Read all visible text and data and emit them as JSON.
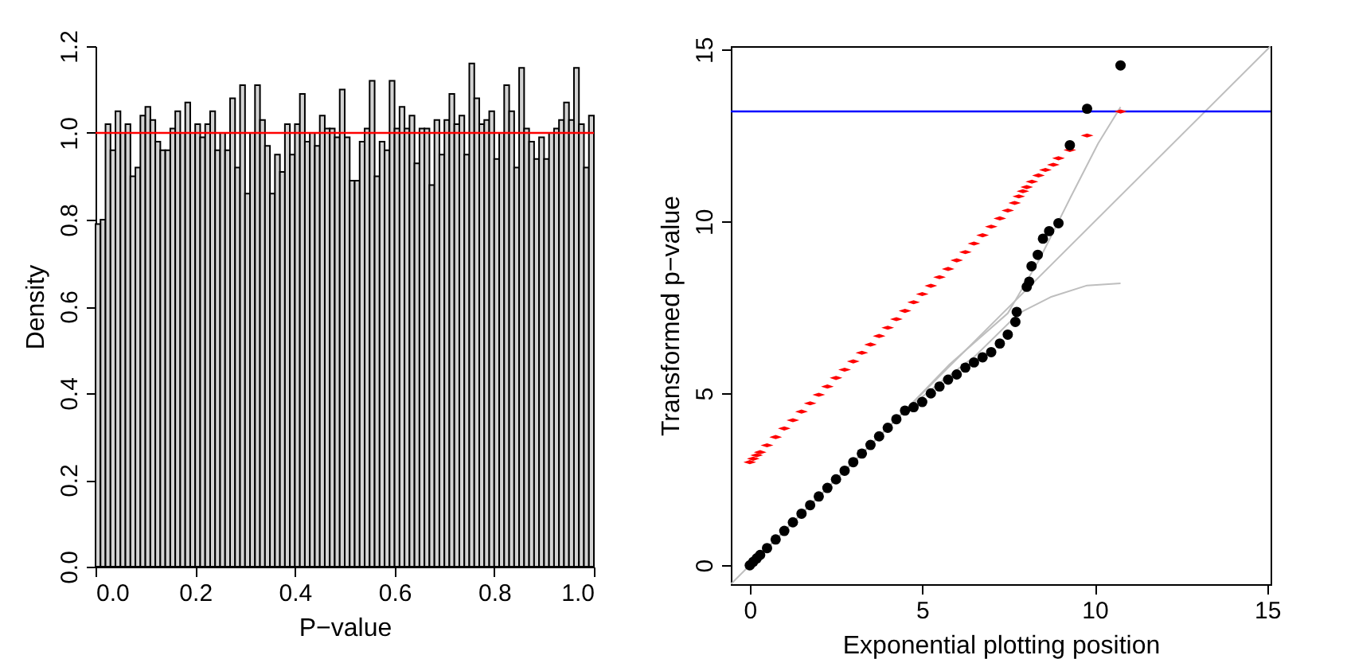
{
  "chart_data": [
    {
      "type": "histogram",
      "xlabel": "P−value",
      "ylabel": "Density",
      "color": "#d3d3d3",
      "bins": [
        0,
        0.01,
        0.02,
        0.03,
        0.04,
        0.05,
        0.06,
        0.07,
        0.08,
        0.09,
        0.1,
        0.11,
        0.12,
        0.13,
        0.14,
        0.15,
        0.16,
        0.17,
        0.18,
        0.19,
        0.2,
        0.21,
        0.22,
        0.23,
        0.24,
        0.25,
        0.26,
        0.27,
        0.28,
        0.29,
        0.3,
        0.31,
        0.32,
        0.33,
        0.34,
        0.35,
        0.36,
        0.37,
        0.38,
        0.39,
        0.4,
        0.41,
        0.42,
        0.43,
        0.44,
        0.45,
        0.46,
        0.47,
        0.48,
        0.49,
        0.5,
        0.51,
        0.52,
        0.53,
        0.54,
        0.55,
        0.56,
        0.57,
        0.58,
        0.59,
        0.6,
        0.61,
        0.62,
        0.63,
        0.64,
        0.65,
        0.66,
        0.67,
        0.68,
        0.69,
        0.7,
        0.71,
        0.72,
        0.73,
        0.74,
        0.75,
        0.76,
        0.77,
        0.78,
        0.79,
        0.8,
        0.81,
        0.82,
        0.83,
        0.84,
        0.85,
        0.86,
        0.87,
        0.88,
        0.89,
        0.9,
        0.91,
        0.92,
        0.93,
        0.94,
        0.95,
        0.96,
        0.97,
        0.98,
        0.99,
        1
      ],
      "values": [
        0.79,
        0.8,
        1.02,
        0.96,
        1.05,
        1.0,
        1.02,
        0.9,
        0.92,
        1.04,
        1.06,
        1.03,
        0.98,
        0.96,
        0.96,
        1.01,
        1.05,
        1.0,
        1.07,
        1.0,
        1.02,
        0.99,
        1.02,
        1.05,
        0.96,
        1.0,
        0.96,
        1.08,
        0.92,
        1.11,
        0.86,
        1.0,
        1.11,
        1.03,
        0.97,
        0.86,
        0.95,
        0.91,
        1.02,
        0.95,
        1.02,
        1.09,
        0.98,
        1.0,
        0.97,
        1.04,
        1.01,
        1.01,
        0.99,
        1.1,
        0.99,
        0.89,
        0.89,
        0.98,
        1.01,
        1.12,
        0.9,
        0.98,
        0.96,
        1.12,
        1.01,
        1.06,
        1.01,
        1.04,
        0.93,
        1.01,
        1.01,
        0.88,
        1.03,
        0.95,
        1.03,
        1.09,
        1.02,
        1.04,
        0.95,
        1.16,
        1.08,
        1.02,
        1.03,
        1.05,
        0.94,
        1.0,
        1.11,
        1.05,
        0.92,
        1.15,
        1.01,
        0.98,
        0.94,
        0.99,
        0.94,
        1.0,
        1.01,
        1.03,
        1.07,
        1.03,
        1.15,
        1.02,
        0.92,
        1.04
      ],
      "xlim": [
        0,
        1
      ],
      "ylim": [
        0,
        1.2
      ],
      "xticks": [
        {
          "value": 0,
          "label": "0.0"
        },
        0.2,
        0.4,
        0.6,
        0.8,
        {
          "value": 1,
          "label": "1.0"
        }
      ],
      "yticks": [
        {
          "value": 0,
          "label": "0.0"
        },
        0.2,
        0.4,
        0.6,
        0.8,
        {
          "value": 1,
          "label": "1.0"
        },
        1.2
      ],
      "ref_lines": [
        {
          "axis": "y",
          "value": 1,
          "color": "#ff0000"
        }
      ]
    },
    {
      "type": "scatter",
      "xlabel": "Exponential plotting position",
      "ylabel": "Transformed p−value",
      "xlim": [
        -0.55,
        15.1
      ],
      "ylim": [
        -0.55,
        15.1
      ],
      "xticks": [
        0,
        5,
        10,
        15
      ],
      "yticks": [
        0,
        5,
        10,
        15
      ],
      "series": [
        {
          "type": "line",
          "color": "#bebebe",
          "x": [
            -0.55,
            15.1
          ],
          "values": [
            -0.55,
            15.1
          ]
        },
        {
          "type": "line",
          "color": "#bebebe",
          "x": [
            0,
            4.5,
            5.8,
            7.48,
            8.4,
            9.3,
            10.1,
            10.75
          ],
          "values": [
            0,
            4.5,
            5.85,
            7.33,
            8.9,
            10.7,
            12.27,
            13.33
          ]
        },
        {
          "type": "line",
          "color": "#bebebe",
          "x": [
            0,
            4.5,
            5.5,
            6.55,
            7.8,
            8.72,
            9.78,
            10.75
          ],
          "values": [
            0,
            4.5,
            5.3,
            6.1,
            7.33,
            7.8,
            8.14,
            8.2
          ]
        },
        {
          "type": "scatter",
          "marker": "diamond",
          "color": "#ff0000",
          "x": [
            0,
            0.1,
            0.2,
            0.3,
            0.5,
            0.75,
            1,
            1.25,
            1.5,
            1.75,
            2,
            2.25,
            2.5,
            2.75,
            3,
            3.25,
            3.5,
            3.75,
            4,
            4.25,
            4.5,
            4.75,
            5,
            5.25,
            5.5,
            5.75,
            6,
            6.25,
            6.5,
            6.75,
            7,
            7.25,
            7.48,
            7.68,
            7.8,
            7.92,
            8.03,
            8.18,
            8.37,
            8.57,
            8.8,
            8.95,
            9.28,
            9.78,
            10.75
          ],
          "values": [
            3.0,
            3.1,
            3.2,
            3.29,
            3.49,
            3.73,
            3.98,
            4.22,
            4.47,
            4.71,
            4.96,
            5.2,
            5.45,
            5.69,
            5.93,
            6.18,
            6.42,
            6.67,
            6.91,
            7.16,
            7.4,
            7.65,
            7.89,
            8.13,
            8.38,
            8.62,
            8.87,
            9.11,
            9.36,
            9.6,
            9.85,
            10.09,
            10.32,
            10.54,
            10.73,
            10.88,
            11.0,
            11.16,
            11.34,
            11.5,
            11.65,
            11.84,
            12.08,
            12.5,
            13.2
          ]
        },
        {
          "type": "scatter",
          "marker": "circle",
          "color": "#000000",
          "x": [
            0,
            0.1,
            0.2,
            0.3,
            0.5,
            0.75,
            1,
            1.25,
            1.5,
            1.75,
            2,
            2.25,
            2.5,
            2.75,
            3,
            3.25,
            3.5,
            3.75,
            4,
            4.25,
            4.5,
            4.75,
            5,
            5.25,
            5.5,
            5.75,
            6,
            6.25,
            6.5,
            6.75,
            7,
            7.25,
            7.48,
            7.7,
            7.74,
            8.03,
            8.1,
            8.17,
            8.35,
            8.5,
            8.68,
            8.95,
            9.28,
            9.78,
            10.75
          ],
          "values": [
            0,
            0.1,
            0.2,
            0.3,
            0.5,
            0.75,
            1,
            1.25,
            1.5,
            1.75,
            2,
            2.25,
            2.5,
            2.75,
            3,
            3.25,
            3.5,
            3.75,
            4,
            4.25,
            4.5,
            4.6,
            4.75,
            5.0,
            5.2,
            5.4,
            5.55,
            5.75,
            5.9,
            6.05,
            6.2,
            6.45,
            6.71,
            7.08,
            7.37,
            8.1,
            8.25,
            8.7,
            9.03,
            9.5,
            9.72,
            9.95,
            12.22,
            13.28,
            14.54
          ]
        }
      ],
      "ref_lines": [
        {
          "axis": "y",
          "value": 13.2,
          "color": "#0000ff"
        }
      ]
    }
  ]
}
